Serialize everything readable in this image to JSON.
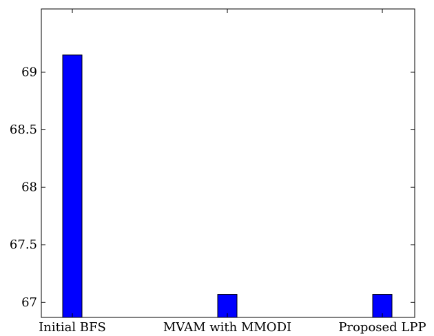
{
  "chart_data": {
    "type": "bar",
    "categories": [
      "Initial BFS",
      "MVAM with MMODI",
      "Proposed LPP"
    ],
    "values": [
      69.15,
      67.07,
      67.07
    ],
    "title": "",
    "xlabel": "",
    "ylabel": "",
    "ylim": [
      66.87,
      69.55
    ],
    "yticks": [
      67,
      67.5,
      68,
      68.5,
      69
    ],
    "ytick_labels": [
      "67",
      "67.5",
      "68",
      "68.5",
      "69"
    ],
    "grid": false,
    "legend": "none",
    "bar_color": "#0000ff",
    "bar_edge_color": "#000000"
  }
}
